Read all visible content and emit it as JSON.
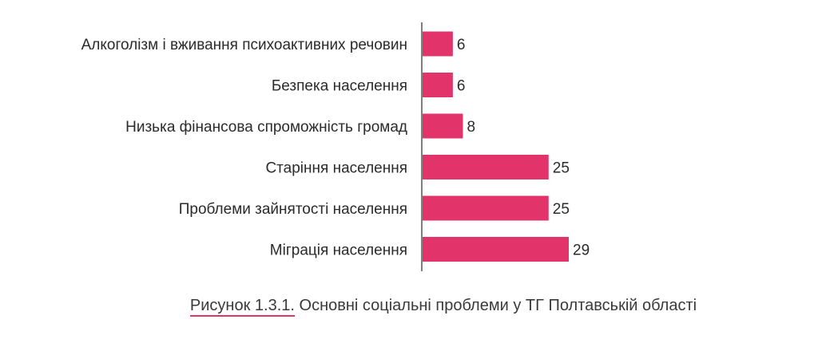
{
  "chart_data": {
    "type": "bar",
    "orientation": "horizontal",
    "categories": [
      "Алкоголізм і вживання психоактивних речовин",
      "Безпека населення",
      "Низька фінансова спроможність громад",
      "Старіння населення",
      "Проблеми зайнятості населення",
      "Міграція населення"
    ],
    "values": [
      6,
      6,
      8,
      25,
      25,
      29
    ],
    "data_labels": [
      "6",
      "6",
      "8",
      "25",
      "25",
      "29"
    ],
    "bar_color": "#e2336b",
    "xlim": [
      0,
      29
    ],
    "grid": false,
    "legend": "none"
  },
  "caption": {
    "number": "Рисунок 1.3.1.",
    "text": " Основні соціальні проблеми у ТГ Полтавській області"
  },
  "colors": {
    "bar": "#e2336b",
    "axis": "#555555",
    "caption_underline": "#e2336b"
  }
}
